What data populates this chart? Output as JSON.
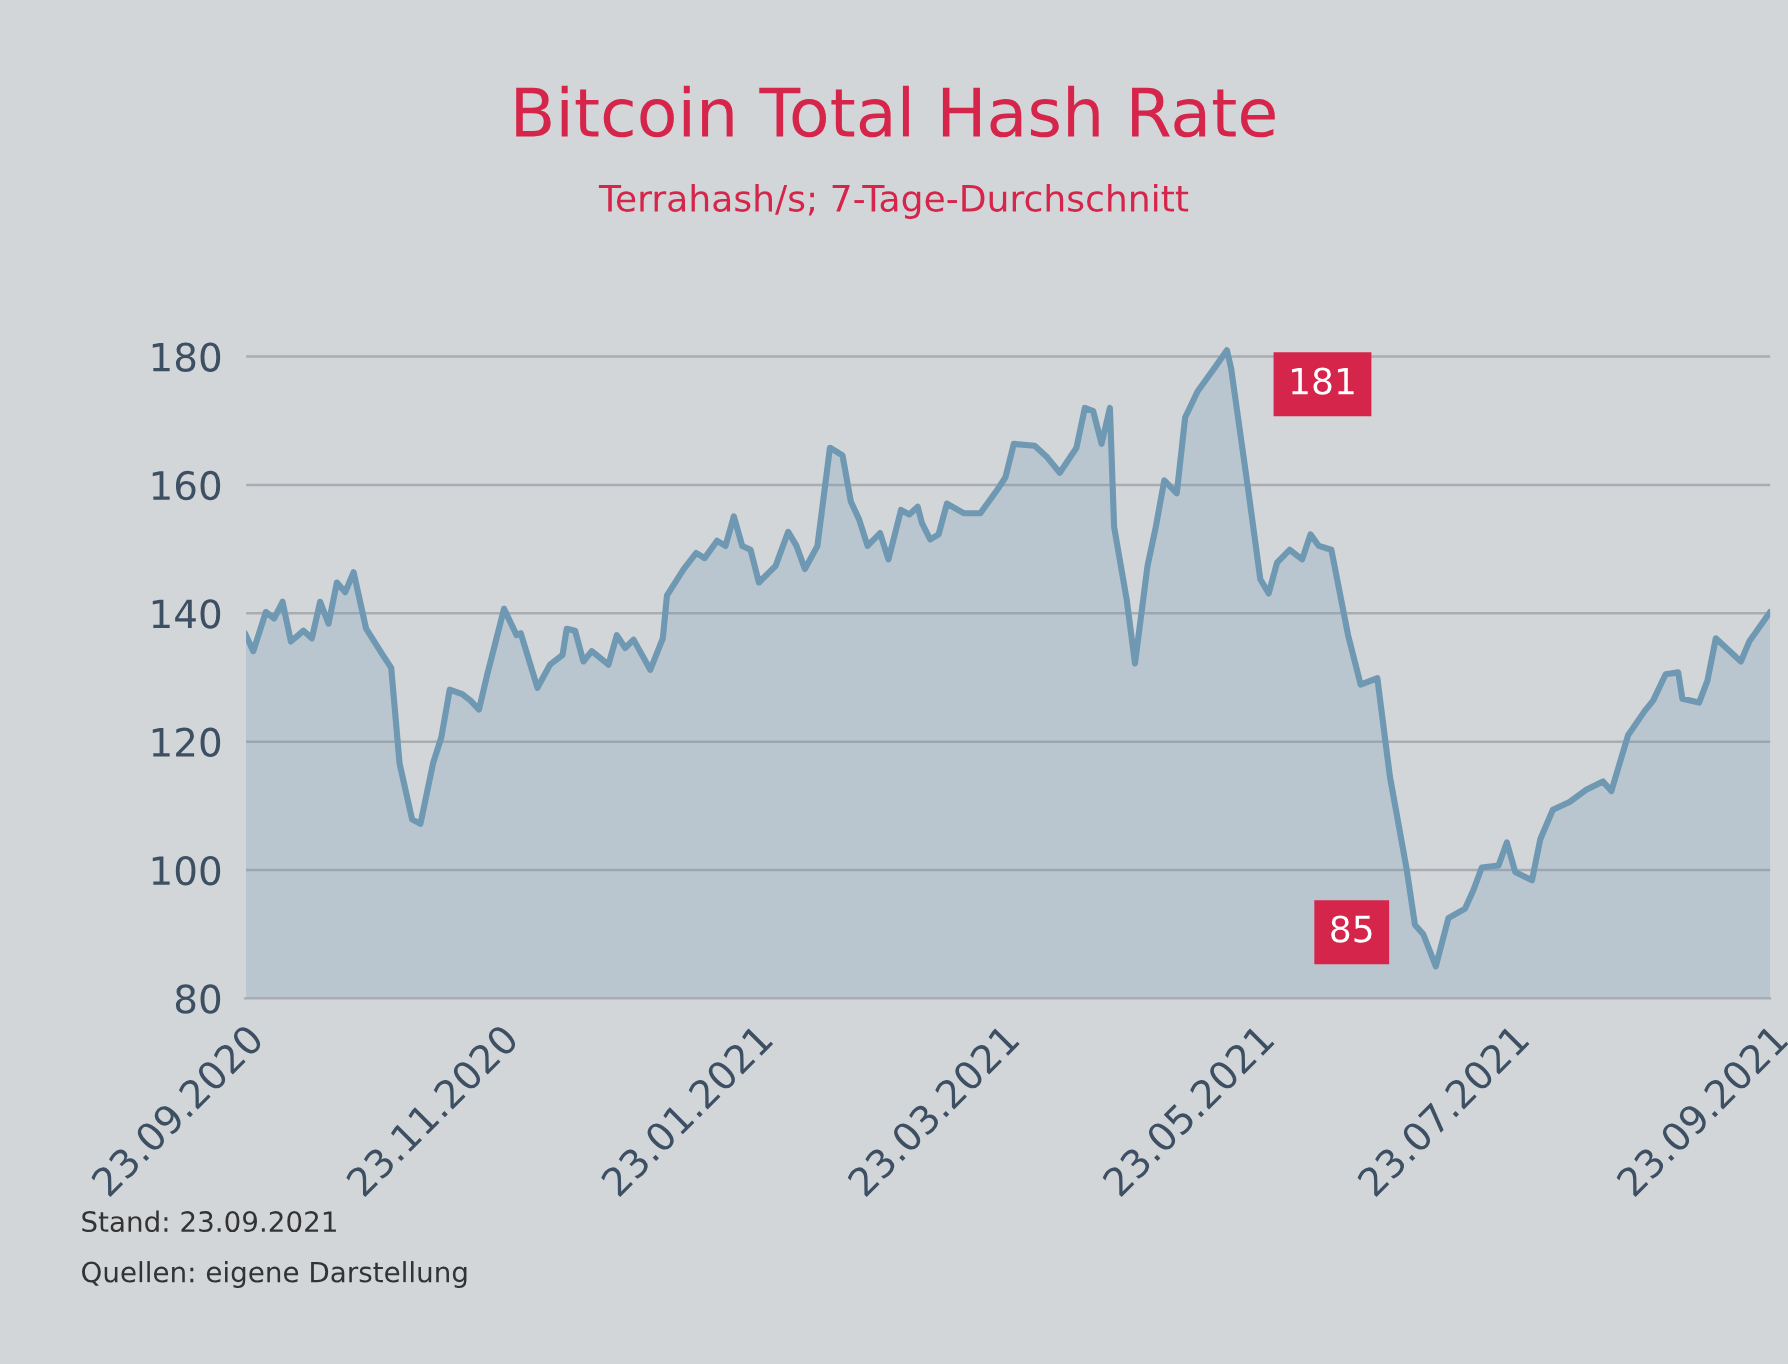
{
  "chart_data": {
    "type": "area",
    "title": "Bitcoin Total Hash Rate",
    "subtitle": "Terrahash/s; 7-Tage-Durchschnitt",
    "x": [
      "2020-09-23",
      "2020-09-25",
      "2020-09-28",
      "2020-09-30",
      "2020-10-02",
      "2020-10-04",
      "2020-10-07",
      "2020-10-09",
      "2020-10-11",
      "2020-10-13",
      "2020-10-15",
      "2020-10-17",
      "2020-10-19",
      "2020-10-22",
      "2020-10-26",
      "2020-10-28",
      "2020-10-30",
      "2020-11-02",
      "2020-11-04",
      "2020-11-07",
      "2020-11-09",
      "2020-11-11",
      "2020-11-14",
      "2020-11-16",
      "2020-11-18",
      "2020-11-20",
      "2020-11-24",
      "2020-11-27",
      "2020-11-28",
      "2020-12-02",
      "2020-12-05",
      "2020-12-08",
      "2020-12-09",
      "2020-12-11",
      "2020-12-13",
      "2020-12-15",
      "2020-12-19",
      "2020-12-21",
      "2020-12-23",
      "2020-12-25",
      "2020-12-29",
      "2021-01-01",
      "2021-01-02",
      "2021-01-06",
      "2021-01-09",
      "2021-01-11",
      "2021-01-14",
      "2021-01-16",
      "2021-01-18",
      "2021-01-20",
      "2021-01-22",
      "2021-01-24",
      "2021-01-28",
      "2021-01-31",
      "2021-02-02",
      "2021-02-04",
      "2021-02-07",
      "2021-02-10",
      "2021-02-13",
      "2021-02-15",
      "2021-02-17",
      "2021-02-19",
      "2021-02-22",
      "2021-02-24",
      "2021-02-27",
      "2021-03-01",
      "2021-03-03",
      "2021-03-04",
      "2021-03-06",
      "2021-03-08",
      "2021-03-10",
      "2021-03-14",
      "2021-03-18",
      "2021-03-22",
      "2021-03-24",
      "2021-03-26",
      "2021-03-31",
      "2021-04-03",
      "2021-04-06",
      "2021-04-10",
      "2021-04-12",
      "2021-04-14",
      "2021-04-16",
      "2021-04-18",
      "2021-04-19",
      "2021-04-22",
      "2021-04-24",
      "2021-04-27",
      "2021-04-29",
      "2021-05-01",
      "2021-05-04",
      "2021-05-06",
      "2021-05-09",
      "2021-05-13",
      "2021-05-16",
      "2021-05-17",
      "2021-05-21",
      "2021-05-24",
      "2021-05-26",
      "2021-05-28",
      "2021-05-31",
      "2021-06-03",
      "2021-06-05",
      "2021-06-07",
      "2021-06-10",
      "2021-06-14",
      "2021-06-17",
      "2021-06-21",
      "2021-06-24",
      "2021-06-28",
      "2021-06-30",
      "2021-07-02",
      "2021-07-05",
      "2021-07-08",
      "2021-07-12",
      "2021-07-14",
      "2021-07-16",
      "2021-07-20",
      "2021-07-22",
      "2021-07-24",
      "2021-07-28",
      "2021-07-30",
      "2021-08-02",
      "2021-08-06",
      "2021-08-10",
      "2021-08-14",
      "2021-08-16",
      "2021-08-20",
      "2021-08-24",
      "2021-08-26",
      "2021-08-29",
      "2021-09-01",
      "2021-09-02",
      "2021-09-06",
      "2021-09-08",
      "2021-09-10",
      "2021-09-16",
      "2021-09-18",
      "2021-09-23"
    ],
    "series": [
      {
        "color": "#6f98b3",
        "values": [
          136.9,
          134.1,
          140.2,
          139.2,
          141.8,
          135.6,
          137.3,
          136.1,
          141.8,
          138.4,
          144.8,
          143.3,
          146.4,
          137.6,
          133.5,
          131.5,
          116.6,
          107.9,
          107.2,
          116.6,
          120.7,
          128.1,
          127.4,
          126.4,
          125.0,
          130.5,
          140.7,
          136.6,
          136.9,
          128.4,
          132.0,
          133.5,
          137.6,
          137.3,
          132.5,
          134.1,
          132.0,
          136.6,
          134.6,
          135.9,
          131.2,
          136.1,
          142.8,
          146.9,
          149.4,
          148.6,
          151.3,
          150.5,
          155.1,
          150.5,
          149.9,
          144.8,
          147.4,
          152.7,
          150.5,
          146.9,
          150.5,
          165.8,
          164.6,
          157.4,
          154.6,
          150.5,
          152.5,
          148.4,
          156.1,
          155.4,
          156.6,
          154.1,
          151.5,
          152.3,
          157.1,
          155.6,
          155.6,
          159.2,
          161.2,
          166.4,
          166.1,
          164.3,
          161.9,
          165.8,
          172.0,
          171.5,
          166.4,
          172.0,
          153.5,
          142.2,
          132.2,
          147.4,
          153.5,
          160.7,
          158.7,
          170.5,
          174.6,
          178.2,
          181,
          178.2,
          159.7,
          145.3,
          143.1,
          147.9,
          149.9,
          148.4,
          152.3,
          150.5,
          149.9,
          136.6,
          128.9,
          129.9,
          114.6,
          100.2,
          91.5,
          90.0,
          85,
          92.5,
          94.0,
          96.9,
          100.4,
          100.7,
          104.3,
          99.7,
          98.4,
          104.8,
          109.4,
          110.6,
          112.5,
          113.8,
          112.3,
          121.0,
          124.8,
          126.4,
          130.5,
          130.8,
          126.7,
          126.1,
          129.5,
          136.1,
          132.5,
          135.6,
          140.2
        ]
      }
    ],
    "xlim": [
      "2020-09-23",
      "2021-09-23"
    ],
    "xticks": [
      {
        "value": "2020-09-23",
        "label": "23.09.2020"
      },
      {
        "value": "2020-11-23",
        "label": "23.11.2020"
      },
      {
        "value": "2021-01-23",
        "label": "23.01.2021"
      },
      {
        "value": "2021-03-23",
        "label": "23.03.2021"
      },
      {
        "value": "2021-05-23",
        "label": "23.05.2021"
      },
      {
        "value": "2021-07-23",
        "label": "23.07.2021"
      },
      {
        "value": "2021-09-23",
        "label": "23.09.2021"
      }
    ],
    "ylim": [
      80,
      182
    ],
    "yticks": [
      80,
      100,
      120,
      140,
      160,
      180
    ],
    "grid": "y",
    "legend": false,
    "annotations": [
      {
        "text": "181",
        "x": "2021-05-16",
        "y": 181
      },
      {
        "text": "85",
        "x": "2021-07-05",
        "y": 85
      },
      "Stand: 23.09.2021",
      "Quellen: eigene Darstellung"
    ]
  }
}
